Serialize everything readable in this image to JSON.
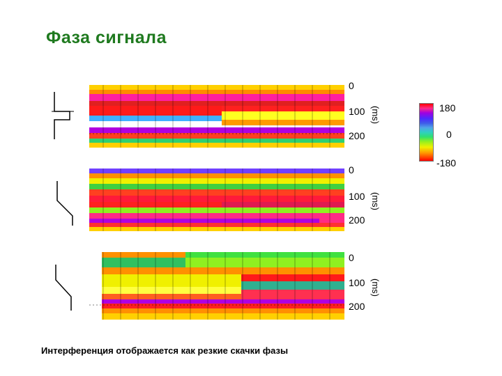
{
  "title": "Фаза сигнала",
  "caption": "Интерференция отображается как резкие скачки фазы",
  "panels": [
    {
      "ticks": [
        "0",
        "100",
        "200"
      ],
      "unit": "(ms)",
      "icon": "step-junction-icon"
    },
    {
      "ticks": [
        "0",
        "100",
        "200"
      ],
      "unit": "(ms)",
      "icon": "ramp-junction-icon"
    },
    {
      "ticks": [
        "0",
        "100",
        "200"
      ],
      "unit": "(ms)",
      "icon": "slope-junction-icon"
    }
  ],
  "colorbar": {
    "max": "180",
    "mid": "0",
    "min": "-180"
  },
  "colors": {
    "title": "#1f7a1f"
  }
}
